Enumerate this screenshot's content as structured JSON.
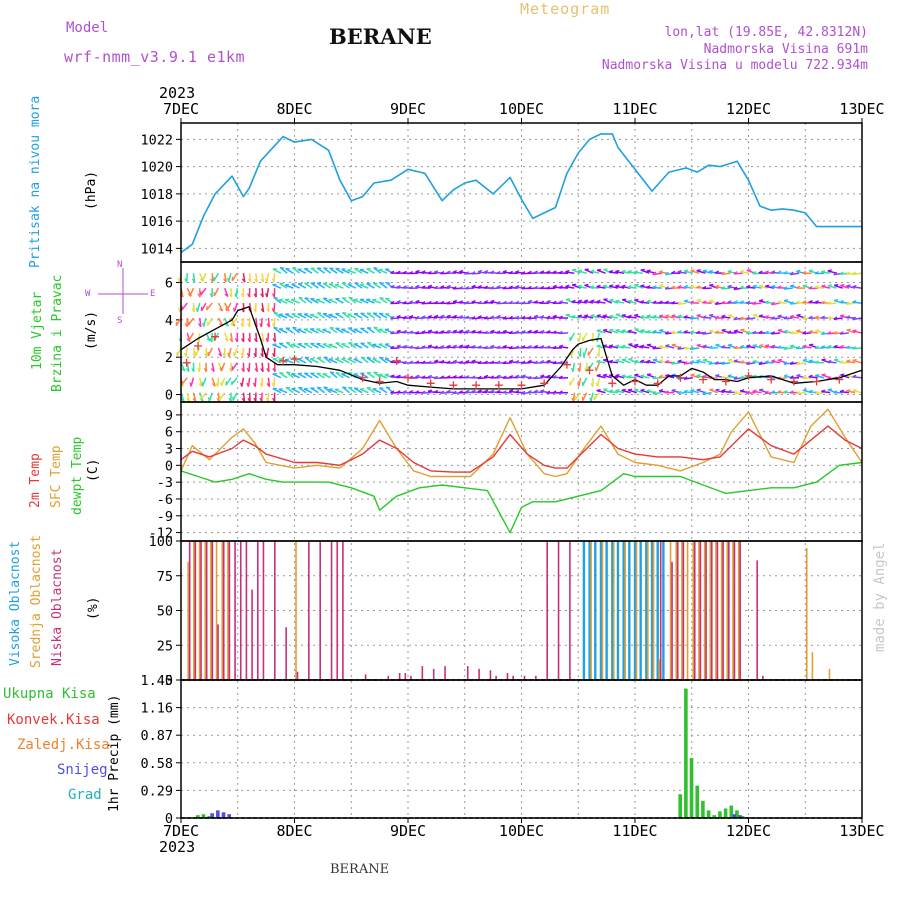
{
  "header": {
    "model_label": "Model",
    "model_name": "wrf-nmm_v3.9.1 e1km",
    "station": "BERANE",
    "chart_title": "Meteogram",
    "coords": "lon,lat (19.85E, 42.8312N)",
    "elevation": "Nadmorska Visina 691m",
    "model_elevation": "Nadmorska Visina u modelu 722.934m",
    "credit": "made by Angel",
    "footer_station": "BERANE"
  },
  "time_axis": {
    "year": "2023",
    "ticks": [
      "7DEC",
      "8DEC",
      "9DEC",
      "10DEC",
      "11DEC",
      "12DEC",
      "13DEC"
    ]
  },
  "colors": {
    "pressure": "#1fa0e0",
    "temp2m": "#e83838",
    "sfc_temp": "#e0a030",
    "dewpt": "#28c828",
    "cloud_high": "#1fa0e0",
    "cloud_mid": "#e0a030",
    "cloud_low": "#c8307a",
    "precip_total": "#30c030",
    "precip_conv": "#e83838",
    "precip_frozen": "#f08030",
    "precip_snow": "#5050e0",
    "precip_hail": "#20b0b0",
    "wind_speed": "#000000",
    "wind_gust": "#e83838"
  },
  "chart_data": [
    {
      "type": "line",
      "panel": "pressure",
      "labels": [
        "Pritisak na nivou mora",
        "(hPa)"
      ],
      "y_ticks": [
        "1014",
        "1016",
        "1018",
        "1020",
        "1022"
      ],
      "ylim": [
        1013,
        1023.2
      ],
      "grid": true,
      "series": [
        {
          "name": "Pritisak na nivou mora",
          "x": [
            0,
            0.1,
            0.2,
            0.3,
            0.45,
            0.55,
            0.6,
            0.7,
            0.9,
            1.0,
            1.15,
            1.3,
            1.4,
            1.5,
            1.6,
            1.7,
            1.85,
            2.0,
            2.15,
            2.3,
            2.4,
            2.5,
            2.6,
            2.75,
            2.9,
            3.0,
            3.1,
            3.2,
            3.3,
            3.4,
            3.5,
            3.6,
            3.7,
            3.8,
            3.85,
            4.0,
            4.15,
            4.3,
            4.45,
            4.55,
            4.65,
            4.75,
            4.9,
            5.0,
            5.1,
            5.2,
            5.3,
            5.4,
            5.5,
            5.6,
            5.7,
            5.8,
            5.9,
            6.0
          ],
          "values": [
            1013.7,
            1014.3,
            1016.4,
            1018.0,
            1019.3,
            1017.8,
            1018.4,
            1020.4,
            1022.2,
            1021.8,
            1022.0,
            1021.2,
            1019.0,
            1017.5,
            1017.8,
            1018.8,
            1019.0,
            1019.8,
            1019.5,
            1017.5,
            1018.3,
            1018.8,
            1019.0,
            1018.0,
            1019.2,
            1017.6,
            1016.2,
            1016.6,
            1017.0,
            1019.5,
            1021.0,
            1022.0,
            1022.4,
            1022.4,
            1021.4,
            1019.8,
            1018.2,
            1019.6,
            1019.9,
            1019.6,
            1020.1,
            1020.0,
            1020.4,
            1019.0,
            1017.1,
            1016.8,
            1016.9,
            1016.8,
            1016.6,
            1015.6,
            1015.6,
            1015.6,
            1015.6,
            1015.6
          ]
        }
      ]
    },
    {
      "type": "line",
      "panel": "wind",
      "labels": [
        "10m Vjetar",
        "Brzina i Pravac",
        "(m/s)"
      ],
      "compass": {
        "north": "N",
        "west": "W",
        "east": "E",
        "south": "S"
      },
      "y_ticks": [
        "0",
        "2",
        "4",
        "6"
      ],
      "ylim": [
        -0.4,
        7.1
      ],
      "grid": true,
      "series": [
        {
          "name": "speed",
          "x": [
            0,
            0.15,
            0.3,
            0.45,
            0.5,
            0.6,
            0.7,
            0.75,
            0.85,
            1.0,
            1.2,
            1.4,
            1.6,
            1.75,
            1.9,
            2.0,
            2.2,
            2.4,
            2.6,
            2.8,
            3.0,
            3.2,
            3.35,
            3.45,
            3.5,
            3.6,
            3.7,
            3.8,
            3.9,
            4.0,
            4.1,
            4.2,
            4.3,
            4.4,
            4.5,
            4.6,
            4.7,
            4.8,
            4.9,
            5.0,
            5.2,
            5.4,
            5.6,
            5.8,
            6.0
          ],
          "values": [
            2.4,
            3.0,
            3.5,
            4.0,
            4.5,
            4.7,
            3.0,
            2.0,
            1.6,
            1.6,
            1.5,
            1.3,
            0.8,
            0.6,
            0.7,
            0.5,
            0.4,
            0.3,
            0.3,
            0.3,
            0.3,
            0.5,
            1.5,
            2.4,
            2.7,
            2.9,
            3.0,
            1.0,
            0.5,
            0.8,
            0.5,
            0.5,
            1.0,
            1.0,
            1.4,
            1.2,
            0.8,
            0.8,
            0.7,
            0.9,
            1.0,
            0.6,
            0.7,
            0.9,
            1.3
          ]
        },
        {
          "name": "gust",
          "x": [
            0.05,
            0.15,
            0.3,
            0.9,
            1.0,
            1.6,
            1.75,
            1.9,
            2.0,
            2.2,
            2.4,
            2.6,
            2.8,
            3.0,
            3.2,
            3.4,
            3.6,
            3.8,
            4.0,
            4.2,
            4.4,
            4.6,
            4.8,
            5.0,
            5.2,
            5.4,
            5.6,
            5.8
          ],
          "values": [
            1.7,
            2.6,
            3.1,
            1.8,
            1.9,
            0.9,
            0.7,
            1.8,
            0.9,
            0.6,
            0.5,
            0.5,
            0.5,
            0.5,
            0.6,
            1.6,
            1.3,
            0.6,
            0.7,
            0.6,
            0.9,
            0.8,
            0.7,
            1.0,
            0.8,
            0.7,
            0.7,
            0.8
          ]
        }
      ]
    },
    {
      "type": "line",
      "panel": "temperature",
      "labels": [
        "2m Temp",
        "SFC Temp",
        "dewpt Temp",
        "(C)"
      ],
      "y_ticks": [
        "9",
        "6",
        "3",
        "0",
        "-3",
        "-6",
        "-9",
        "-12"
      ],
      "ylim": [
        -13.5,
        11.3
      ],
      "grid": true,
      "series": [
        {
          "name": "2m Temp",
          "x": [
            0,
            0.1,
            0.25,
            0.45,
            0.55,
            0.65,
            0.75,
            1.0,
            1.2,
            1.4,
            1.6,
            1.75,
            1.9,
            2.05,
            2.2,
            2.4,
            2.55,
            2.75,
            2.9,
            3.05,
            3.2,
            3.3,
            3.4,
            3.55,
            3.7,
            3.85,
            4.0,
            4.2,
            4.4,
            4.6,
            4.75,
            4.85,
            5.0,
            5.2,
            5.4,
            5.55,
            5.7,
            5.85,
            6.0
          ],
          "values": [
            1.0,
            2.5,
            1.5,
            3.0,
            4.5,
            3.5,
            2.0,
            0.5,
            0.5,
            0.0,
            2.0,
            4.5,
            3.0,
            0.5,
            -1.0,
            -1.2,
            -1.2,
            1.5,
            5.5,
            2.0,
            0.0,
            -0.5,
            -0.5,
            2.5,
            5.5,
            3.0,
            2.0,
            1.5,
            1.5,
            1.0,
            1.5,
            3.5,
            6.5,
            3.5,
            2.0,
            4.5,
            7.0,
            4.5,
            3.0
          ]
        },
        {
          "name": "SFC Temp",
          "x": [
            0,
            0.1,
            0.25,
            0.45,
            0.55,
            0.65,
            0.75,
            1.0,
            1.2,
            1.4,
            1.6,
            1.75,
            1.9,
            2.05,
            2.2,
            2.4,
            2.55,
            2.75,
            2.9,
            3.05,
            3.2,
            3.3,
            3.4,
            3.55,
            3.7,
            3.85,
            4.0,
            4.2,
            4.4,
            4.6,
            4.75,
            4.85,
            5.0,
            5.2,
            5.4,
            5.55,
            5.7,
            5.85,
            6.0
          ],
          "values": [
            -1.0,
            3.5,
            1.0,
            5.0,
            6.5,
            4.0,
            0.5,
            -0.5,
            0.0,
            -0.5,
            3.0,
            8.0,
            3.0,
            -1.0,
            -2.0,
            -2.0,
            -2.0,
            2.0,
            8.5,
            2.0,
            -1.5,
            -2.0,
            -1.5,
            3.0,
            7.0,
            2.0,
            0.5,
            0.0,
            -1.0,
            0.5,
            2.0,
            6.0,
            9.5,
            1.5,
            0.5,
            7.0,
            10.0,
            5.0,
            0.5
          ]
        },
        {
          "name": "dewpt Temp",
          "x": [
            0,
            0.15,
            0.3,
            0.45,
            0.6,
            0.75,
            0.9,
            1.1,
            1.3,
            1.5,
            1.7,
            1.75,
            1.9,
            2.1,
            2.3,
            2.5,
            2.7,
            2.9,
            3.0,
            3.1,
            3.3,
            3.5,
            3.7,
            3.9,
            4.0,
            4.2,
            4.4,
            4.6,
            4.8,
            5.0,
            5.2,
            5.4,
            5.6,
            5.8,
            6.0
          ],
          "values": [
            -1.0,
            -2.0,
            -3.0,
            -2.5,
            -1.5,
            -2.5,
            -3.0,
            -3.0,
            -3.0,
            -4.0,
            -5.5,
            -8.0,
            -5.5,
            -4.0,
            -3.5,
            -4.0,
            -4.5,
            -12.0,
            -7.5,
            -6.5,
            -6.5,
            -5.5,
            -4.5,
            -1.5,
            -2.0,
            -2.0,
            -2.0,
            -3.5,
            -5.0,
            -4.5,
            -4.0,
            -4.0,
            -3.0,
            0.0,
            0.5
          ]
        }
      ]
    },
    {
      "type": "bar",
      "panel": "clouds",
      "labels": [
        "Visoka Oblacnost",
        "Srednja Oblacnost",
        "Niska Oblacnost",
        "(%)"
      ],
      "y_ticks": [
        "0",
        "25",
        "50",
        "75",
        "100"
      ],
      "ylim": [
        0,
        100
      ],
      "grid": true,
      "series": [
        {
          "name": "Visoka Oblacnost",
          "x": [
            3.55,
            3.6,
            3.65,
            3.7,
            3.75,
            3.8,
            3.85,
            3.9,
            3.95,
            4.0,
            4.05,
            4.1,
            4.15,
            4.2,
            4.25
          ],
          "values": [
            100,
            100,
            100,
            100,
            100,
            100,
            100,
            100,
            100,
            100,
            100,
            100,
            100,
            100,
            100
          ]
        },
        {
          "name": "Srednja Oblacnost",
          "x": [
            0.05,
            0.1,
            0.15,
            0.2,
            0.25,
            0.3,
            0.35,
            0.4,
            1.0,
            3.6,
            3.7,
            3.8,
            3.9,
            4.0,
            4.1,
            4.15,
            4.2,
            4.3,
            4.35,
            4.4,
            4.45,
            4.5,
            4.55,
            4.6,
            4.65,
            4.7,
            4.75,
            4.8,
            4.85,
            4.9,
            5.5,
            5.55,
            5.7
          ],
          "values": [
            85,
            100,
            100,
            100,
            100,
            100,
            100,
            100,
            100,
            100,
            100,
            100,
            100,
            100,
            100,
            100,
            15,
            100,
            100,
            100,
            100,
            100,
            100,
            100,
            100,
            100,
            100,
            100,
            100,
            100,
            95,
            20,
            8
          ]
        },
        {
          "name": "Niska Oblacnost",
          "x": [
            0.05,
            0.1,
            0.15,
            0.2,
            0.25,
            0.3,
            0.35,
            0.4,
            0.45,
            0.5,
            0.55,
            0.6,
            0.65,
            0.7,
            0.8,
            0.9,
            1.0,
            1.1,
            1.2,
            1.3,
            1.35,
            1.4,
            1.6,
            1.8,
            1.9,
            1.95,
            2.0,
            2.1,
            2.2,
            2.3,
            2.5,
            2.6,
            2.7,
            2.75,
            2.85,
            2.9,
            3.0,
            3.1,
            3.2,
            3.3,
            3.4,
            4.2,
            4.3,
            4.35,
            4.4,
            4.5,
            4.55,
            4.6,
            4.65,
            4.7,
            4.75,
            4.8,
            4.85,
            4.9,
            5.05,
            5.1
          ],
          "values": [
            100,
            100,
            100,
            100,
            100,
            40,
            100,
            100,
            100,
            100,
            100,
            65,
            100,
            100,
            100,
            38,
            6,
            100,
            100,
            100,
            100,
            100,
            4,
            3,
            5,
            5,
            3,
            10,
            8,
            10,
            10,
            8,
            7,
            3,
            5,
            3,
            3,
            3,
            100,
            100,
            100,
            100,
            85,
            100,
            100,
            100,
            100,
            100,
            100,
            100,
            100,
            100,
            100,
            100,
            86,
            3
          ]
        }
      ]
    },
    {
      "type": "bar",
      "panel": "precipitation",
      "labels": [
        "Ukupna Kisa",
        "Konvek.Kisa",
        "Zaledj.Kisa",
        "Snijeg",
        "Grad",
        "1hr Precip (mm)"
      ],
      "y_ticks": [
        "0",
        "0.29",
        "0.58",
        "0.87",
        "1.16",
        "1.45"
      ],
      "ylim": [
        0,
        1.45
      ],
      "grid": true,
      "series": [
        {
          "name": "Ukupna Kisa",
          "x": [
            0.15,
            0.2,
            0.25,
            0.3,
            0.35,
            3.5,
            3.55,
            3.6,
            3.65,
            3.7,
            3.75,
            3.8,
            3.85,
            3.9,
            3.95,
            4.0,
            4.05,
            4.1,
            4.15,
            4.2,
            4.25,
            4.3,
            4.35,
            4.4,
            4.45,
            4.5,
            4.55,
            4.6,
            4.65,
            4.7,
            4.75,
            4.8,
            4.85,
            4.9,
            4.95,
            5.0
          ],
          "values": [
            0.03,
            0.04,
            0.02,
            0.01,
            0.01,
            0.0,
            0.0,
            0.0,
            0.0,
            0.0,
            0.0,
            0.0,
            0.0,
            0.0,
            0.0,
            0.0,
            0.0,
            0.0,
            0.0,
            0.0,
            0.0,
            0.0,
            0.0,
            0.25,
            1.36,
            0.63,
            0.34,
            0.18,
            0.08,
            0.03,
            0.07,
            0.1,
            0.13,
            0.08,
            0.02,
            0.01
          ]
        },
        {
          "name": "Konvek.Kisa",
          "x": [
            4.4,
            4.45,
            4.5,
            4.55
          ],
          "values": [
            0.0,
            0.01,
            0.01,
            0.0
          ]
        },
        {
          "name": "Snijeg",
          "x": [
            0.25,
            0.3,
            0.35,
            0.4,
            4.85,
            4.9
          ],
          "values": [
            0.05,
            0.08,
            0.06,
            0.04,
            0.04,
            0.03
          ]
        }
      ]
    }
  ]
}
